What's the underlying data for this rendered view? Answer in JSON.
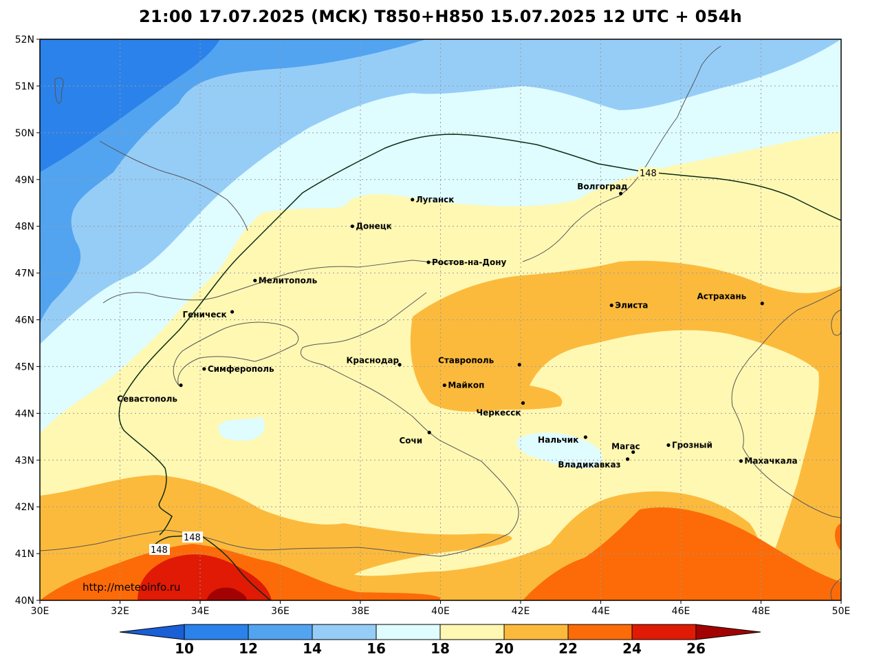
{
  "title": "21:00 17.07.2025 (MCK) T850+H850 15.07.2025 12 UTC + 054h",
  "credit": "http://meteoinfo.ru",
  "colors": {
    "c_lt10": "#1a5fd6",
    "c10_12": "#2b82ea",
    "c12_14": "#52a4f0",
    "c14_16": "#96cdf7",
    "c16_18": "#dffcff",
    "c18_20": "#fff8b3",
    "c20_22": "#fcba3d",
    "c22_24": "#fc6b08",
    "c24_26": "#e01a04",
    "c_gt26": "#a30202"
  },
  "axes": {
    "lon": {
      "min": 30,
      "max": 50,
      "step": 2,
      "labels": [
        "30E",
        "32E",
        "34E",
        "36E",
        "38E",
        "40E",
        "42E",
        "44E",
        "46E",
        "48E",
        "50E"
      ]
    },
    "lat": {
      "min": 40,
      "max": 52,
      "step": 1,
      "labels": [
        "40N",
        "41N",
        "42N",
        "43N",
        "44N",
        "45N",
        "46N",
        "47N",
        "48N",
        "49N",
        "50N",
        "51N",
        "52N"
      ]
    }
  },
  "colorbar": {
    "labels": [
      "10",
      "12",
      "14",
      "16",
      "18",
      "20",
      "22",
      "24",
      "26"
    ]
  },
  "isoline": {
    "value": "148"
  },
  "cities": [
    {
      "name": "Луганск",
      "lon": 39.3,
      "lat": 48.57
    },
    {
      "name": "Донецк",
      "lon": 37.8,
      "lat": 48.0
    },
    {
      "name": "Волгоград",
      "lon": 44.5,
      "lat": 48.7
    },
    {
      "name": "Ростов-на-Дону",
      "lon": 39.7,
      "lat": 47.23
    },
    {
      "name": "Мелитополь",
      "lon": 35.37,
      "lat": 46.84
    },
    {
      "name": "Геническ",
      "lon": 34.8,
      "lat": 46.17
    },
    {
      "name": "Элиста",
      "lon": 44.27,
      "lat": 46.31
    },
    {
      "name": "Астрахань",
      "lon": 48.03,
      "lat": 46.35
    },
    {
      "name": "Симферополь",
      "lon": 34.1,
      "lat": 44.95
    },
    {
      "name": "Краснодар",
      "lon": 38.98,
      "lat": 45.04
    },
    {
      "name": "Ставрополь",
      "lon": 41.97,
      "lat": 45.04
    },
    {
      "name": "Майкоп",
      "lon": 40.1,
      "lat": 44.6
    },
    {
      "name": "Севастополь",
      "lon": 33.52,
      "lat": 44.6
    },
    {
      "name": "Черкесск",
      "lon": 42.06,
      "lat": 44.22
    },
    {
      "name": "Нальчик",
      "lon": 43.62,
      "lat": 43.49
    },
    {
      "name": "Сочи",
      "lon": 39.72,
      "lat": 43.59
    },
    {
      "name": "Грозный",
      "lon": 45.69,
      "lat": 43.32
    },
    {
      "name": "Магас",
      "lon": 44.81,
      "lat": 43.17
    },
    {
      "name": "Владикавказ",
      "lon": 44.67,
      "lat": 43.02
    },
    {
      "name": "Махачкала",
      "lon": 47.5,
      "lat": 42.98
    }
  ]
}
